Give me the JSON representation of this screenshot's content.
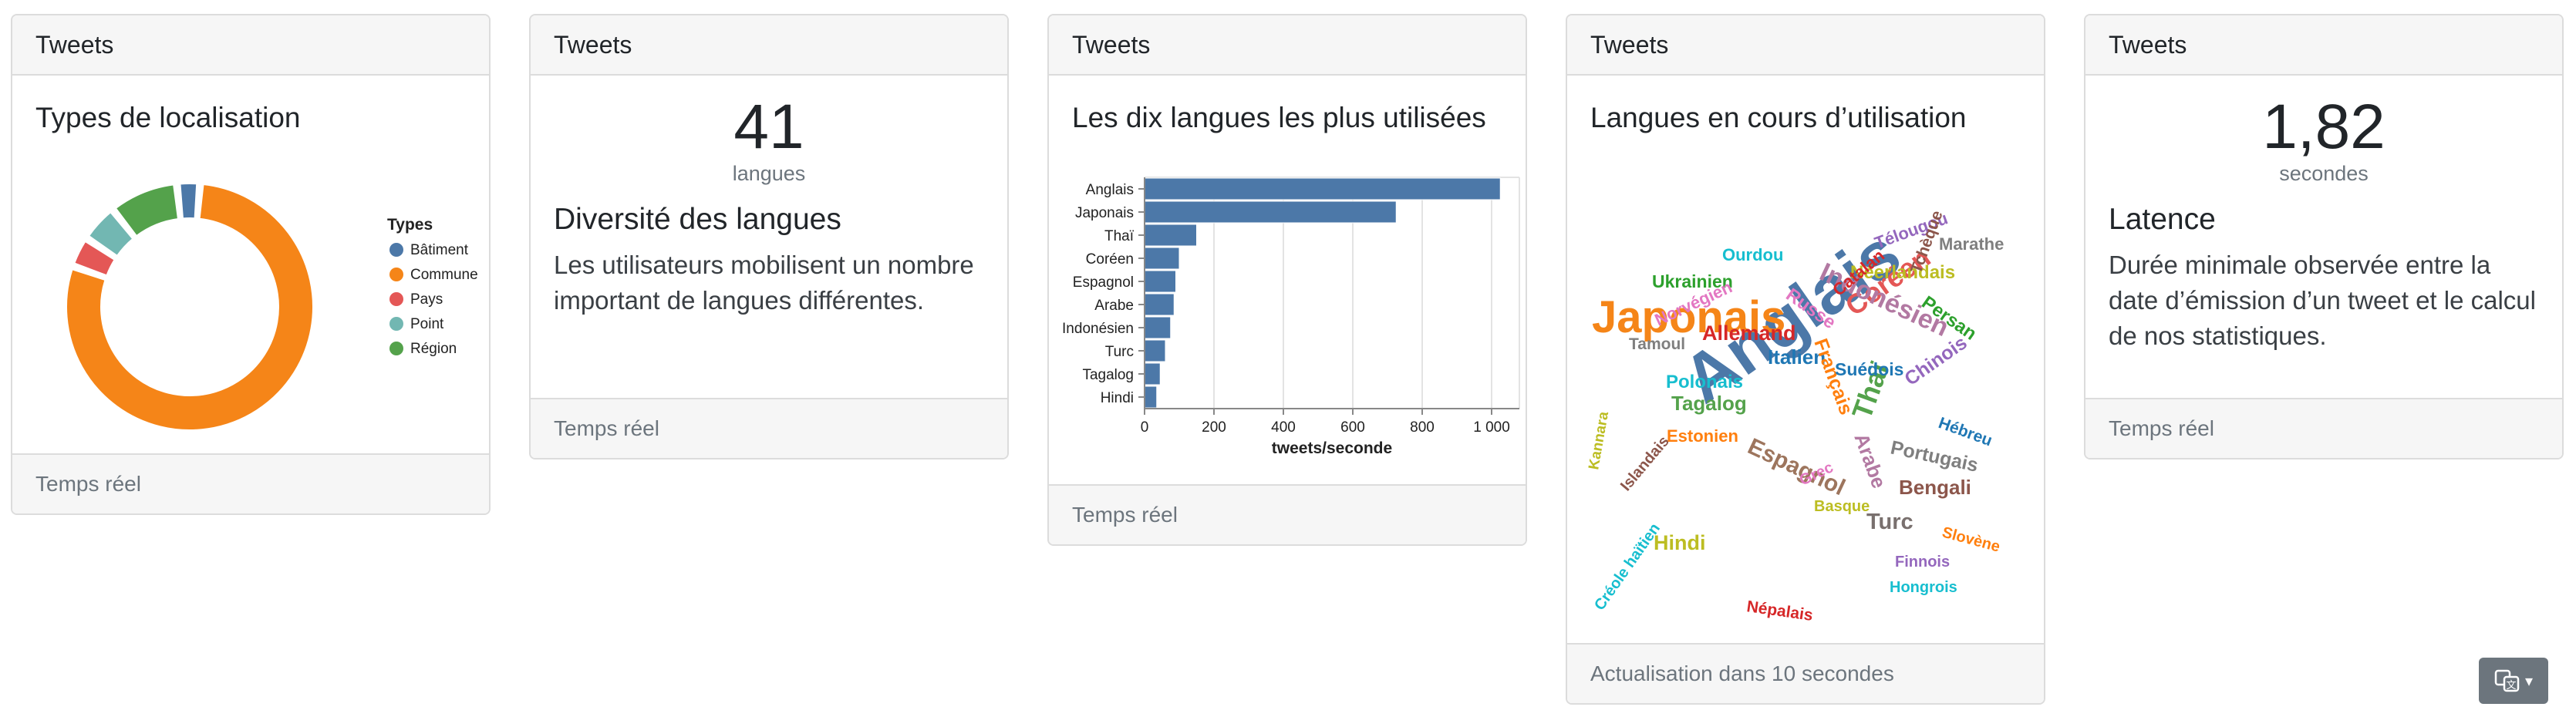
{
  "cards": {
    "header": "Tweets",
    "location": {
      "title": "Types de localisation",
      "footer": "Temps réel",
      "legend_title": "Types",
      "legend": [
        {
          "label": "Bâtiment",
          "color": "#4c78a8"
        },
        {
          "label": "Commune",
          "color": "#f58518"
        },
        {
          "label": "Pays",
          "color": "#e45756"
        },
        {
          "label": "Point",
          "color": "#72b7b2"
        },
        {
          "label": "Région",
          "color": "#54a24b"
        }
      ]
    },
    "languages_count": {
      "value": "41",
      "unit": "langues",
      "title": "Diversité des langues",
      "text": "Les utilisateurs mobilisent un nombre important de langues différentes.",
      "footer": "Temps réel"
    },
    "top_languages": {
      "title": "Les dix langues les plus utilisées",
      "footer": "Temps réel"
    },
    "word_cloud": {
      "title": "Langues en cours d’utilisation",
      "footer": "Actualisation dans 10 secondes",
      "words": [
        {
          "text": "Anglais",
          "color": "#4c78a8"
        },
        {
          "text": "Japonais",
          "color": "#f58518"
        },
        {
          "text": "Coréen",
          "color": "#e45756"
        },
        {
          "text": "Thaï",
          "color": "#54a24b"
        },
        {
          "text": "Indonésien",
          "color": "#b279a2"
        },
        {
          "text": "Espagnol",
          "color": "#9d755d"
        },
        {
          "text": "Arabe",
          "color": "#b279a2"
        },
        {
          "text": "Turc",
          "color": "#79706e"
        },
        {
          "text": "Hindi",
          "color": "#bcbd22"
        },
        {
          "text": "Tagalog",
          "color": "#54a24b"
        },
        {
          "text": "Allemand",
          "color": "#d62728"
        },
        {
          "text": "Italien",
          "color": "#1f77b4"
        },
        {
          "text": "Français",
          "color": "#ff7f0e"
        },
        {
          "text": "Russe",
          "color": "#e377c2"
        },
        {
          "text": "Portugais",
          "color": "#7f7f7f"
        },
        {
          "text": "Bengali",
          "color": "#8c564b"
        },
        {
          "text": "Chinois",
          "color": "#9467bd"
        },
        {
          "text": "Persan",
          "color": "#2ca02c"
        },
        {
          "text": "Néerlandais",
          "color": "#bcbd22"
        },
        {
          "text": "Suédois",
          "color": "#1f77b4"
        },
        {
          "text": "Polonais",
          "color": "#17becf"
        },
        {
          "text": "Ukrainien",
          "color": "#2ca02c"
        },
        {
          "text": "Ourdou",
          "color": "#17becf"
        },
        {
          "text": "Catalan",
          "color": "#d62728"
        },
        {
          "text": "Télougou",
          "color": "#9467bd"
        },
        {
          "text": "Tchèque",
          "color": "#8c564b"
        },
        {
          "text": "Marathe",
          "color": "#7f7f7f"
        },
        {
          "text": "Norvégien",
          "color": "#e377c2"
        },
        {
          "text": "Tamoul",
          "color": "#7f7f7f"
        },
        {
          "text": "Kannara",
          "color": "#bcbd22"
        },
        {
          "text": "Islandais",
          "color": "#8c564b"
        },
        {
          "text": "Estonien",
          "color": "#ff7f0e"
        },
        {
          "text": "Grec",
          "color": "#e377c2"
        },
        {
          "text": "Basque",
          "color": "#bcbd22"
        },
        {
          "text": "Hébreu",
          "color": "#1f77b4"
        },
        {
          "text": "Slovène",
          "color": "#ff7f0e"
        },
        {
          "text": "Finnois",
          "color": "#9467bd"
        },
        {
          "text": "Hongrois",
          "color": "#17becf"
        },
        {
          "text": "Népalais",
          "color": "#d62728"
        },
        {
          "text": "Créole haïtien",
          "color": "#17becf"
        }
      ]
    },
    "latency": {
      "value": "1,82",
      "unit": "secondes",
      "title": "Latence",
      "text": "Durée minimale observée entre la date d’émission d’un tweet et le calcul de nos statistiques.",
      "footer": "Temps réel"
    }
  },
  "language_button": {
    "icon": "translate-icon",
    "caret": "▾",
    "glyph": "文"
  },
  "chart_data": [
    {
      "type": "pie",
      "donut": true,
      "title": "Types de localisation",
      "legend_title": "Types",
      "legend_position": "right",
      "categories": [
        "Bâtiment",
        "Commune",
        "Pays",
        "Point",
        "Région"
      ],
      "values": [
        3,
        79,
        4,
        5,
        9
      ],
      "colors": [
        "#4c78a8",
        "#f58518",
        "#e45756",
        "#72b7b2",
        "#54a24b"
      ]
    },
    {
      "type": "bar",
      "orientation": "horizontal",
      "title": "Les dix langues les plus utilisées",
      "categories": [
        "Anglais",
        "Japonais",
        "Thaï",
        "Coréen",
        "Espagnol",
        "Arabe",
        "Indonésien",
        "Turc",
        "Tagalog",
        "Hindi"
      ],
      "values": [
        1025,
        725,
        150,
        100,
        90,
        85,
        75,
        60,
        45,
        35
      ],
      "xlabel": "tweets/seconde",
      "xlim": [
        0,
        1080
      ],
      "xticks": [
        0,
        200,
        400,
        600,
        800,
        1000
      ],
      "xtick_labels": [
        "0",
        "200",
        "400",
        "600",
        "800",
        "1 000"
      ],
      "grid": true,
      "color": "#4c78a8"
    }
  ]
}
